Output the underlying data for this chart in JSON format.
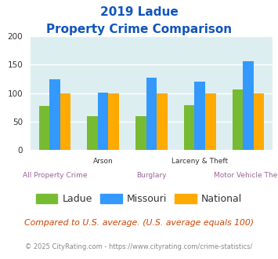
{
  "title_line1": "2019 Ladue",
  "title_line2": "Property Crime Comparison",
  "categories": [
    "All Property Crime",
    "Arson",
    "Burglary",
    "Larceny & Theft",
    "Motor Vehicle Theft"
  ],
  "ladue": [
    78,
    60,
    60,
    79,
    106
  ],
  "missouri": [
    125,
    101,
    127,
    120,
    156
  ],
  "national": [
    100,
    100,
    100,
    100,
    100
  ],
  "ladue_color": "#77bb33",
  "missouri_color": "#3399ff",
  "national_color": "#ffaa00",
  "ylim": [
    0,
    200
  ],
  "yticks": [
    0,
    50,
    100,
    150,
    200
  ],
  "bg_color": "#ddeef0",
  "fig_bg": "#ffffff",
  "title_color": "#1155bb",
  "xlabel_top_color": "#333333",
  "xlabel_bot_color": "#996699",
  "footer_text": "Compared to U.S. average. (U.S. average equals 100)",
  "footer_color": "#cc4400",
  "credit_text": "© 2025 CityRating.com - https://www.cityrating.com/crime-statistics/",
  "credit_color": "#888888",
  "legend_labels": [
    "Ladue",
    "Missouri",
    "National"
  ],
  "bar_width": 0.22,
  "grid_color": "#ffffff",
  "top_labels": [
    "",
    "Arson",
    "",
    "Larceny & Theft",
    ""
  ],
  "bot_labels": [
    "All Property Crime",
    "",
    "Burglary",
    "",
    "Motor Vehicle Theft"
  ]
}
